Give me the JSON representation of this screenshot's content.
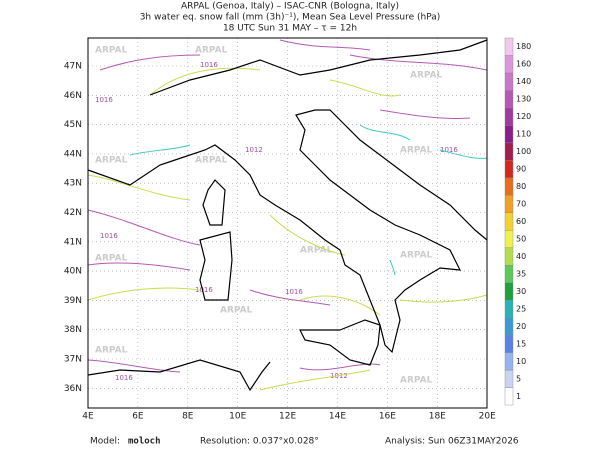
{
  "header": {
    "line1": "ARPAL (Genoa, Italy)  –  ISAC-CNR (Bologna, Italy)",
    "line2": "3h water eq. snow fall (mm (3h)⁻¹), Mean Sea Level Pressure (hPa)",
    "line3": "18 UTC Sun 31 MAY  –  τ = 12h"
  },
  "map": {
    "lon_labels": [
      "4E",
      "6E",
      "8E",
      "10E",
      "12E",
      "14E",
      "16E",
      "18E",
      "20E"
    ],
    "lat_labels": [
      "47N",
      "46N",
      "45N",
      "44N",
      "43N",
      "42N",
      "41N",
      "40N",
      "39N",
      "38N",
      "37N",
      "36N"
    ],
    "watermark": "ARPAL",
    "contour_labels": [
      "1016",
      "1016",
      "1012",
      "1016",
      "1016",
      "1016",
      "1016",
      "1012",
      "1016"
    ]
  },
  "colorbar": {
    "levels": [
      {
        "label": "1",
        "color": "#ffffff"
      },
      {
        "label": "5",
        "color": "#c8d4f0"
      },
      {
        "label": "10",
        "color": "#96b4f0"
      },
      {
        "label": "15",
        "color": "#5a82e6"
      },
      {
        "label": "20",
        "color": "#3c9ad2"
      },
      {
        "label": "25",
        "color": "#28b4b4"
      },
      {
        "label": "30",
        "color": "#1ea03c"
      },
      {
        "label": "35",
        "color": "#5ac85a"
      },
      {
        "label": "40",
        "color": "#b4dc50"
      },
      {
        "label": "50",
        "color": "#f0f050"
      },
      {
        "label": "60",
        "color": "#f0d232"
      },
      {
        "label": "70",
        "color": "#f0a028"
      },
      {
        "label": "80",
        "color": "#e66e1e"
      },
      {
        "label": "90",
        "color": "#d2281e"
      },
      {
        "label": "100",
        "color": "#a01e50"
      },
      {
        "label": "110",
        "color": "#8c1e8c"
      },
      {
        "label": "120",
        "color": "#a03ca0"
      },
      {
        "label": "130",
        "color": "#b45ab4"
      },
      {
        "label": "140",
        "color": "#c878c8"
      },
      {
        "label": "160",
        "color": "#dc96dc"
      },
      {
        "label": "180",
        "color": "#f0c8f0"
      }
    ]
  },
  "footer": {
    "model_label": "Model:",
    "model": "moloch",
    "resolution": "Resolution: 0.037°x0.028°",
    "analysis": "Analysis: Sun 06Z31MAY2026"
  }
}
